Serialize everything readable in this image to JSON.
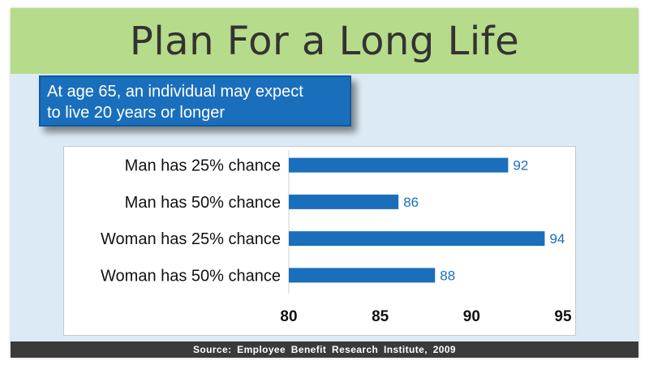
{
  "slide": {
    "title": "Plan For a Long Life",
    "callout": {
      "line1": "At age 65, an individual may expect",
      "line2": "to live 20 years or longer"
    },
    "source": "Source: Employee Benefit Research Institute, 2009"
  },
  "colors": {
    "title_band": "#b6db8b",
    "background": "#dbeaf4",
    "callout": "#1a6fbc",
    "bar": "#1a6fbc",
    "data_label": "#1a6fbc",
    "footer": "#3a3a3a"
  },
  "chart_data": {
    "type": "bar",
    "orientation": "horizontal",
    "categories": [
      "Man has 25% chance",
      "Man has 50% chance",
      "Woman has 25% chance",
      "Woman has 50% chance"
    ],
    "values": [
      92,
      86,
      94,
      88
    ],
    "data_labels": [
      "92",
      "86",
      "94",
      "88"
    ],
    "xlim": [
      80,
      95
    ],
    "xticks": [
      80,
      85,
      90,
      95
    ],
    "xtick_labels": [
      "80",
      "85",
      "90",
      "95"
    ],
    "title": "",
    "xlabel": "",
    "ylabel": "",
    "grid": false,
    "legend": "none"
  }
}
